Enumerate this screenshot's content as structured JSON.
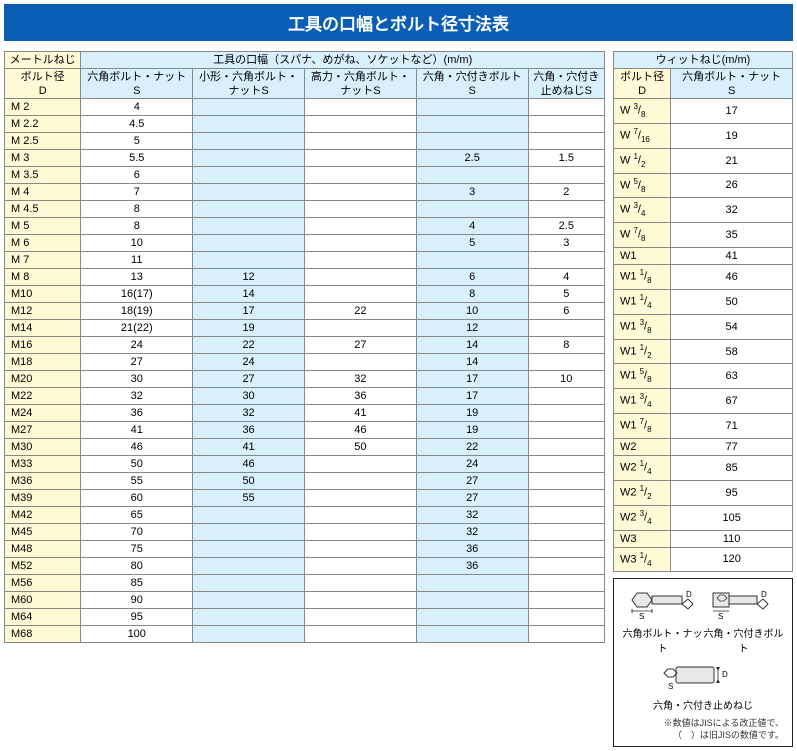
{
  "title": "工具の口幅とボルト径寸法表",
  "leftTable": {
    "header1": {
      "corner": "メートルねじ",
      "span": "工具の口幅（スパナ、めがね、ソケットなど）(m/m)"
    },
    "header2": [
      "ボルト径\nD",
      "六角ボルト・ナット\nS",
      "小形・六角ボルト・\nナットS",
      "高力・六角ボルト・\nナットS",
      "六角・穴付きボルト\nS",
      "六角・穴付き\n止めねじS"
    ],
    "rows": [
      [
        "M 2",
        "4",
        "",
        "",
        "",
        ""
      ],
      [
        "M 2.2",
        "4.5",
        "",
        "",
        "",
        ""
      ],
      [
        "M 2.5",
        "5",
        "",
        "",
        "",
        ""
      ],
      [
        "M 3",
        "5.5",
        "",
        "",
        "2.5",
        "1.5"
      ],
      [
        "M 3.5",
        "6",
        "",
        "",
        "",
        ""
      ],
      [
        "M 4",
        "7",
        "",
        "",
        "3",
        "2"
      ],
      [
        "M 4.5",
        "8",
        "",
        "",
        "",
        ""
      ],
      [
        "M 5",
        "8",
        "",
        "",
        "4",
        "2.5"
      ],
      [
        "M 6",
        "10",
        "",
        "",
        "5",
        "3"
      ],
      [
        "M 7",
        "11",
        "",
        "",
        "",
        ""
      ],
      [
        "M 8",
        "13",
        "12",
        "",
        "6",
        "4"
      ],
      [
        "M10",
        "16(17)",
        "14",
        "",
        "8",
        "5"
      ],
      [
        "M12",
        "18(19)",
        "17",
        "22",
        "10",
        "6"
      ],
      [
        "M14",
        "21(22)",
        "19",
        "",
        "12",
        ""
      ],
      [
        "M16",
        "24",
        "22",
        "27",
        "14",
        "8"
      ],
      [
        "M18",
        "27",
        "24",
        "",
        "14",
        ""
      ],
      [
        "M20",
        "30",
        "27",
        "32",
        "17",
        "10"
      ],
      [
        "M22",
        "32",
        "30",
        "36",
        "17",
        ""
      ],
      [
        "M24",
        "36",
        "32",
        "41",
        "19",
        ""
      ],
      [
        "M27",
        "41",
        "36",
        "46",
        "19",
        ""
      ],
      [
        "M30",
        "46",
        "41",
        "50",
        "22",
        ""
      ],
      [
        "M33",
        "50",
        "46",
        "",
        "24",
        ""
      ],
      [
        "M36",
        "55",
        "50",
        "",
        "27",
        ""
      ],
      [
        "M39",
        "60",
        "55",
        "",
        "27",
        ""
      ],
      [
        "M42",
        "65",
        "",
        "",
        "32",
        ""
      ],
      [
        "M45",
        "70",
        "",
        "",
        "32",
        ""
      ],
      [
        "M48",
        "75",
        "",
        "",
        "36",
        ""
      ],
      [
        "M52",
        "80",
        "",
        "",
        "36",
        ""
      ],
      [
        "M56",
        "85",
        "",
        "",
        "",
        ""
      ],
      [
        "M60",
        "90",
        "",
        "",
        "",
        ""
      ],
      [
        "M64",
        "95",
        "",
        "",
        "",
        ""
      ],
      [
        "M68",
        "100",
        "",
        "",
        "",
        ""
      ]
    ],
    "colClasses": [
      "col-a",
      "col-w",
      "col-b",
      "col-w",
      "col-b",
      "col-w"
    ]
  },
  "rightTable": {
    "header1": "ウィットねじ(m/m)",
    "header2": [
      "ボルト径\nD",
      "六角ボルト・ナット\nS"
    ],
    "rows": [
      [
        "W 3/8",
        "17"
      ],
      [
        "W 7/16",
        "19"
      ],
      [
        "W 1/2",
        "21"
      ],
      [
        "W 5/8",
        "26"
      ],
      [
        "W 3/4",
        "32"
      ],
      [
        "W 7/8",
        "35"
      ],
      [
        "W1",
        "41"
      ],
      [
        "W1 1/8",
        "46"
      ],
      [
        "W1 1/4",
        "50"
      ],
      [
        "W1 3/8",
        "54"
      ],
      [
        "W1 1/2",
        "58"
      ],
      [
        "W1 5/8",
        "63"
      ],
      [
        "W1 3/4",
        "67"
      ],
      [
        "W1 7/8",
        "71"
      ],
      [
        "W2",
        "77"
      ],
      [
        "W2 1/4",
        "85"
      ],
      [
        "W2 1/2",
        "95"
      ],
      [
        "W2 3/4",
        "105"
      ],
      [
        "W3",
        "110"
      ],
      [
        "W3 1/4",
        "120"
      ]
    ]
  },
  "diagram": {
    "label1": "六角ボルト・ナット",
    "label2": "六角・穴付きボルト",
    "label3": "六角・穴付き止めねじ",
    "note1": "※数値はJISによる改正値で、",
    "note2": "（　）は旧JISの数値です。"
  },
  "colors": {
    "titleBg": "#0a5fb5",
    "headerBlue": "#d8f0fc",
    "headerYellow": "#fff9d6",
    "border": "#888"
  }
}
